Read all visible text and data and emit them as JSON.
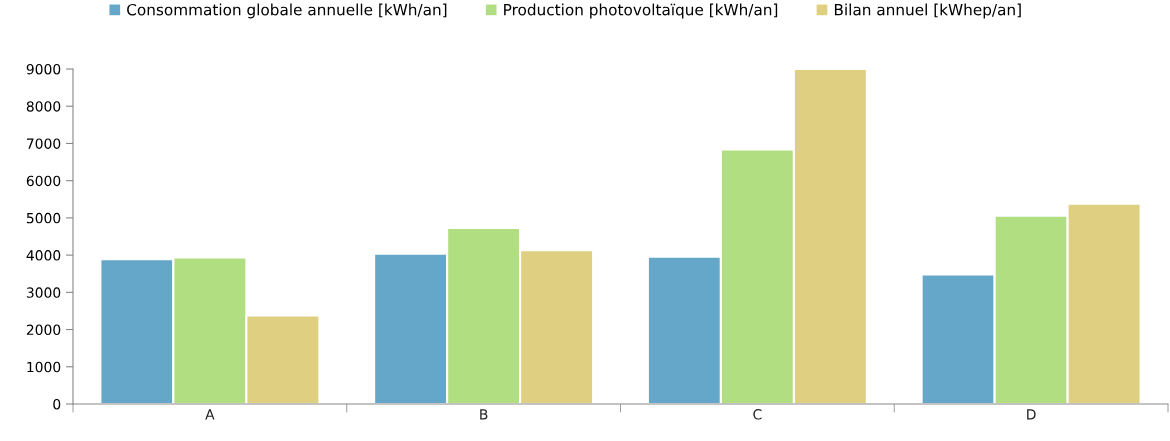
{
  "chart_data": {
    "type": "bar",
    "categories": [
      "A",
      "B",
      "C",
      "D"
    ],
    "series": [
      {
        "name": "Consommation globale annuelle [kWh/an]",
        "color": "#64a7c8",
        "values": [
          3890,
          4040,
          3960,
          3480
        ]
      },
      {
        "name": "Production photovoltaïque [kWh/an]",
        "color": "#b2de82",
        "values": [
          3940,
          4730,
          6840,
          5060
        ]
      },
      {
        "name": "Bilan annuel [kWhep/an]",
        "color": "#dfd081",
        "values": [
          2380,
          4130,
          9000,
          5380
        ]
      }
    ],
    "ylim": [
      0,
      9000
    ],
    "yticks": [
      0,
      1000,
      2000,
      3000,
      4000,
      5000,
      6000,
      7000,
      8000,
      9000
    ],
    "grid": false,
    "legend": "top"
  }
}
